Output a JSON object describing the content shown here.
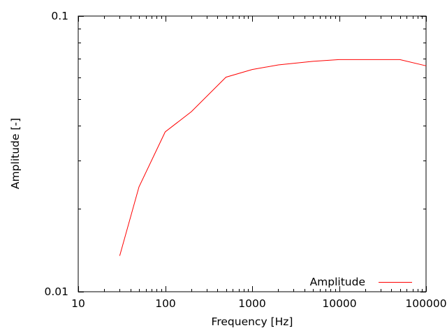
{
  "figure": {
    "background_color": "#ffffff",
    "axis_color": "#000000",
    "text_color": "#000000"
  },
  "chart_data": {
    "type": "line",
    "title": "",
    "xlabel": "Frequency [Hz]",
    "ylabel": "Amplitude [-]",
    "x_scale": "log",
    "y_scale": "log",
    "xlim": [
      10,
      100000
    ],
    "ylim": [
      0.01,
      0.1
    ],
    "grid": false,
    "x_ticks": [
      10,
      100,
      1000,
      10000,
      100000
    ],
    "x_tick_labels": [
      "10",
      "100",
      "1000",
      "10000",
      "100000"
    ],
    "y_ticks": [
      0.01,
      0.1
    ],
    "y_tick_labels": [
      "0.01",
      "0.1"
    ],
    "x_minor_ticks_per_decade": [
      2,
      3,
      4,
      5,
      6,
      7,
      8,
      9
    ],
    "legend": {
      "position": "bottom-right-inside",
      "entries": [
        {
          "label": "Amplitude",
          "color": "#ff0000"
        }
      ]
    },
    "series": [
      {
        "name": "Amplitude",
        "color": "#ff0000",
        "x": [
          30,
          50,
          100,
          200,
          500,
          1000,
          2000,
          5000,
          10000,
          50000,
          100000
        ],
        "y": [
          0.0135,
          0.024,
          0.038,
          0.045,
          0.06,
          0.064,
          0.0665,
          0.0685,
          0.0695,
          0.0695,
          0.066
        ]
      }
    ]
  }
}
